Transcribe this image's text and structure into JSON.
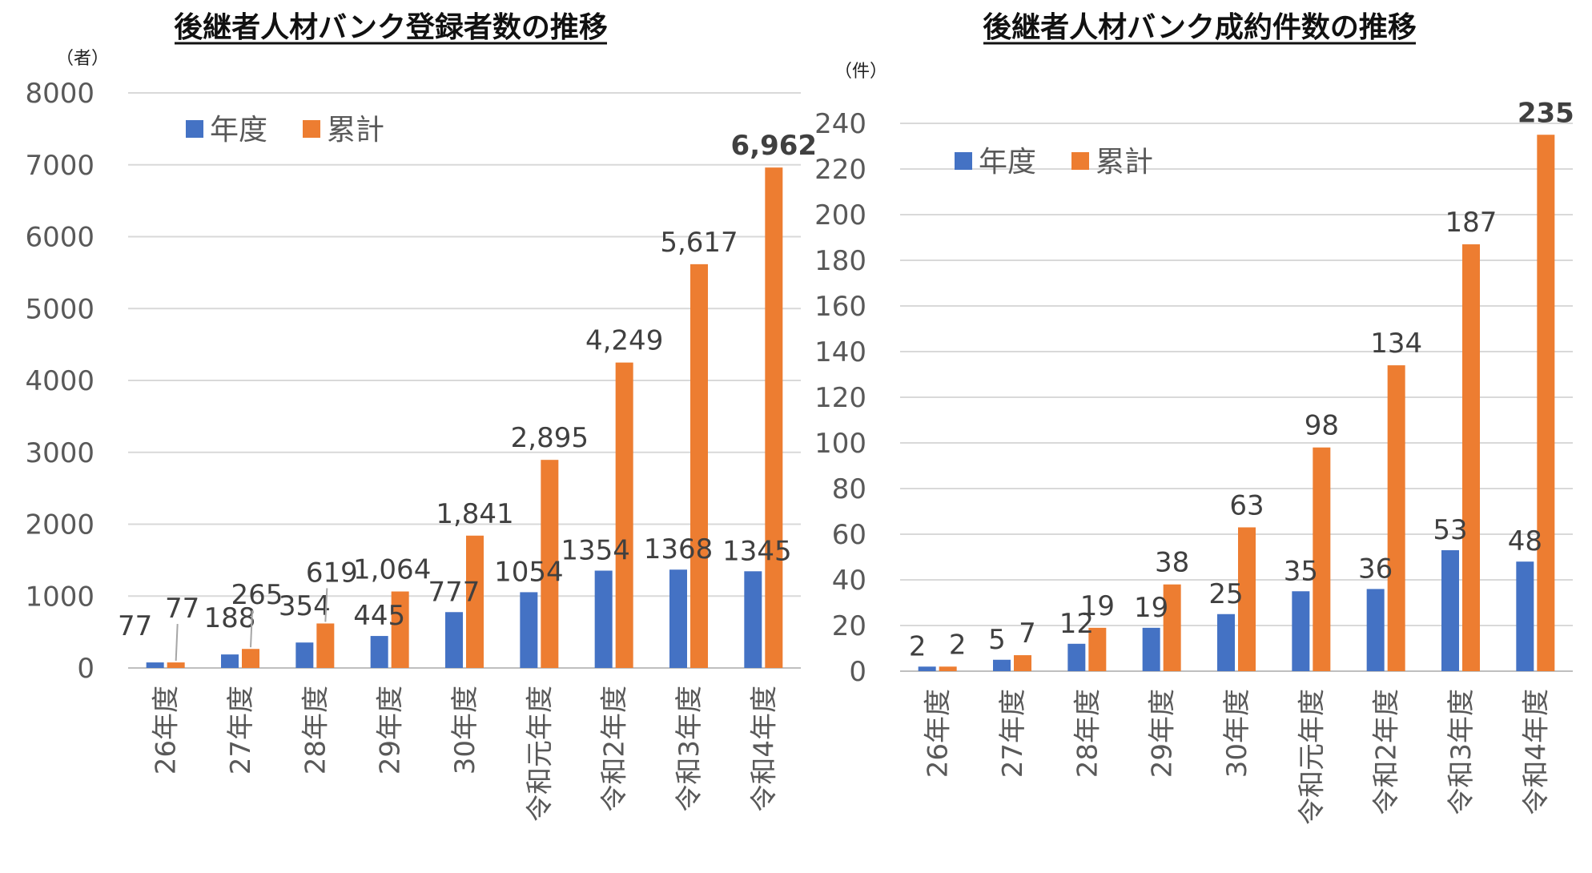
{
  "chart_data": [
    {
      "type": "bar",
      "title": "後継者人材バンク登録者数の推移",
      "unit_label": "（者）",
      "ylim": [
        0,
        8000
      ],
      "ytick_step": 1000,
      "ytick_labels": [
        "0",
        "1000",
        "2000",
        "3000",
        "4000",
        "5000",
        "6000",
        "7000",
        "8000"
      ],
      "categories": [
        "26年度",
        "27年度",
        "28年度",
        "29年度",
        "30年度",
        "令和元年度",
        "令和2年度",
        "令和3年度",
        "令和4年度"
      ],
      "series": [
        {
          "name": "年度",
          "color": "#4472c4",
          "values": [
            77,
            188,
            354,
            445,
            777,
            1054,
            1354,
            1368,
            1345
          ],
          "labels": [
            "77",
            "188",
            "354",
            "445",
            "777",
            "1054",
            "1354",
            "1368",
            "1345"
          ]
        },
        {
          "name": "累計",
          "color": "#ed7d31",
          "values": [
            77,
            265,
            619,
            1064,
            1841,
            2895,
            4249,
            5617,
            6962
          ],
          "labels": [
            "77",
            "265",
            "619",
            "1,064",
            "1,841",
            "2,895",
            "4,249",
            "5,617",
            "6,962"
          ]
        }
      ]
    },
    {
      "type": "bar",
      "title": "後継者人材バンク成約件数の推移",
      "unit_label": "（件）",
      "ylim": [
        0,
        240
      ],
      "ytick_step": 20,
      "ytick_labels": [
        "0",
        "20",
        "40",
        "60",
        "80",
        "100",
        "120",
        "140",
        "160",
        "180",
        "200",
        "220",
        "240"
      ],
      "categories": [
        "26年度",
        "27年度",
        "28年度",
        "29年度",
        "30年度",
        "令和元年度",
        "令和2年度",
        "令和3年度",
        "令和4年度"
      ],
      "series": [
        {
          "name": "年度",
          "color": "#4472c4",
          "values": [
            2,
            5,
            12,
            19,
            25,
            35,
            36,
            53,
            48
          ],
          "labels": [
            "2",
            "5",
            "12",
            "19",
            "25",
            "35",
            "36",
            "53",
            "48"
          ]
        },
        {
          "name": "累計",
          "color": "#ed7d31",
          "values": [
            2,
            7,
            19,
            38,
            63,
            98,
            134,
            187,
            235
          ],
          "labels": [
            "2",
            "7",
            "19",
            "38",
            "63",
            "98",
            "134",
            "187",
            "235"
          ]
        }
      ]
    }
  ]
}
